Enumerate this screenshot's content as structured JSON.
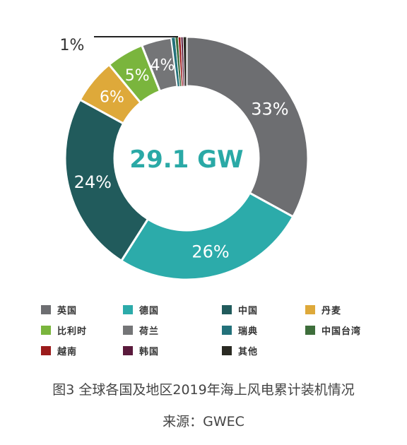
{
  "chart_data": {
    "type": "donut",
    "title": "",
    "center_label": "29.1 GW",
    "slices": [
      {
        "name": "英国",
        "value": 33,
        "label": "33%",
        "color": "#6d6e71"
      },
      {
        "name": "德国",
        "value": 26,
        "label": "26%",
        "color": "#2cabaa"
      },
      {
        "name": "中国",
        "value": 24,
        "label": "24%",
        "color": "#215b5c"
      },
      {
        "name": "丹麦",
        "value": 6,
        "label": "6%",
        "color": "#dea93a"
      },
      {
        "name": "比利时",
        "value": 5,
        "label": "5%",
        "color": "#7ab53d"
      },
      {
        "name": "荷兰",
        "value": 4,
        "label": "4%",
        "color": "#747577"
      },
      {
        "name": "瑞典",
        "value": 0.5,
        "label": "",
        "color": "#23717a"
      },
      {
        "name": "中国台湾",
        "value": 0.4,
        "label": "",
        "color": "#3e6e3b"
      },
      {
        "name": "越南",
        "value": 0.35,
        "label": "",
        "color": "#9b1b1b"
      },
      {
        "name": "韩国",
        "value": 0.3,
        "label": "",
        "color": "#5a1a3c"
      },
      {
        "name": "其他",
        "value": 0.45,
        "label": "",
        "color": "#2a2a22"
      }
    ],
    "callout_label": "1%",
    "legend_placement": "bottom"
  },
  "caption": {
    "title": "图3  全球各国及地区2019年海上风电累计装机情况",
    "source": "来源：GWEC"
  }
}
